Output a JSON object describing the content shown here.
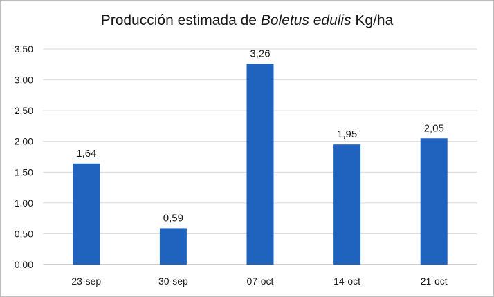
{
  "chart_data": {
    "type": "bar",
    "title": {
      "prefix": "Producción estimada de ",
      "italic": "Boletus edulis",
      "suffix": " Kg/ha"
    },
    "categories": [
      "23-sep",
      "30-sep",
      "07-oct",
      "14-oct",
      "21-oct"
    ],
    "values": [
      1.64,
      0.59,
      3.26,
      1.95,
      2.05
    ],
    "data_labels": [
      "1,64",
      "0,59",
      "3,26",
      "1,95",
      "2,05"
    ],
    "y_ticks": [
      "0,00",
      "0,50",
      "1,00",
      "1,50",
      "2,00",
      "2,50",
      "3,00",
      "3,50"
    ],
    "ylim": [
      0,
      3.5
    ],
    "grid": true,
    "legend": false,
    "bar_color": "#1f63bf"
  }
}
